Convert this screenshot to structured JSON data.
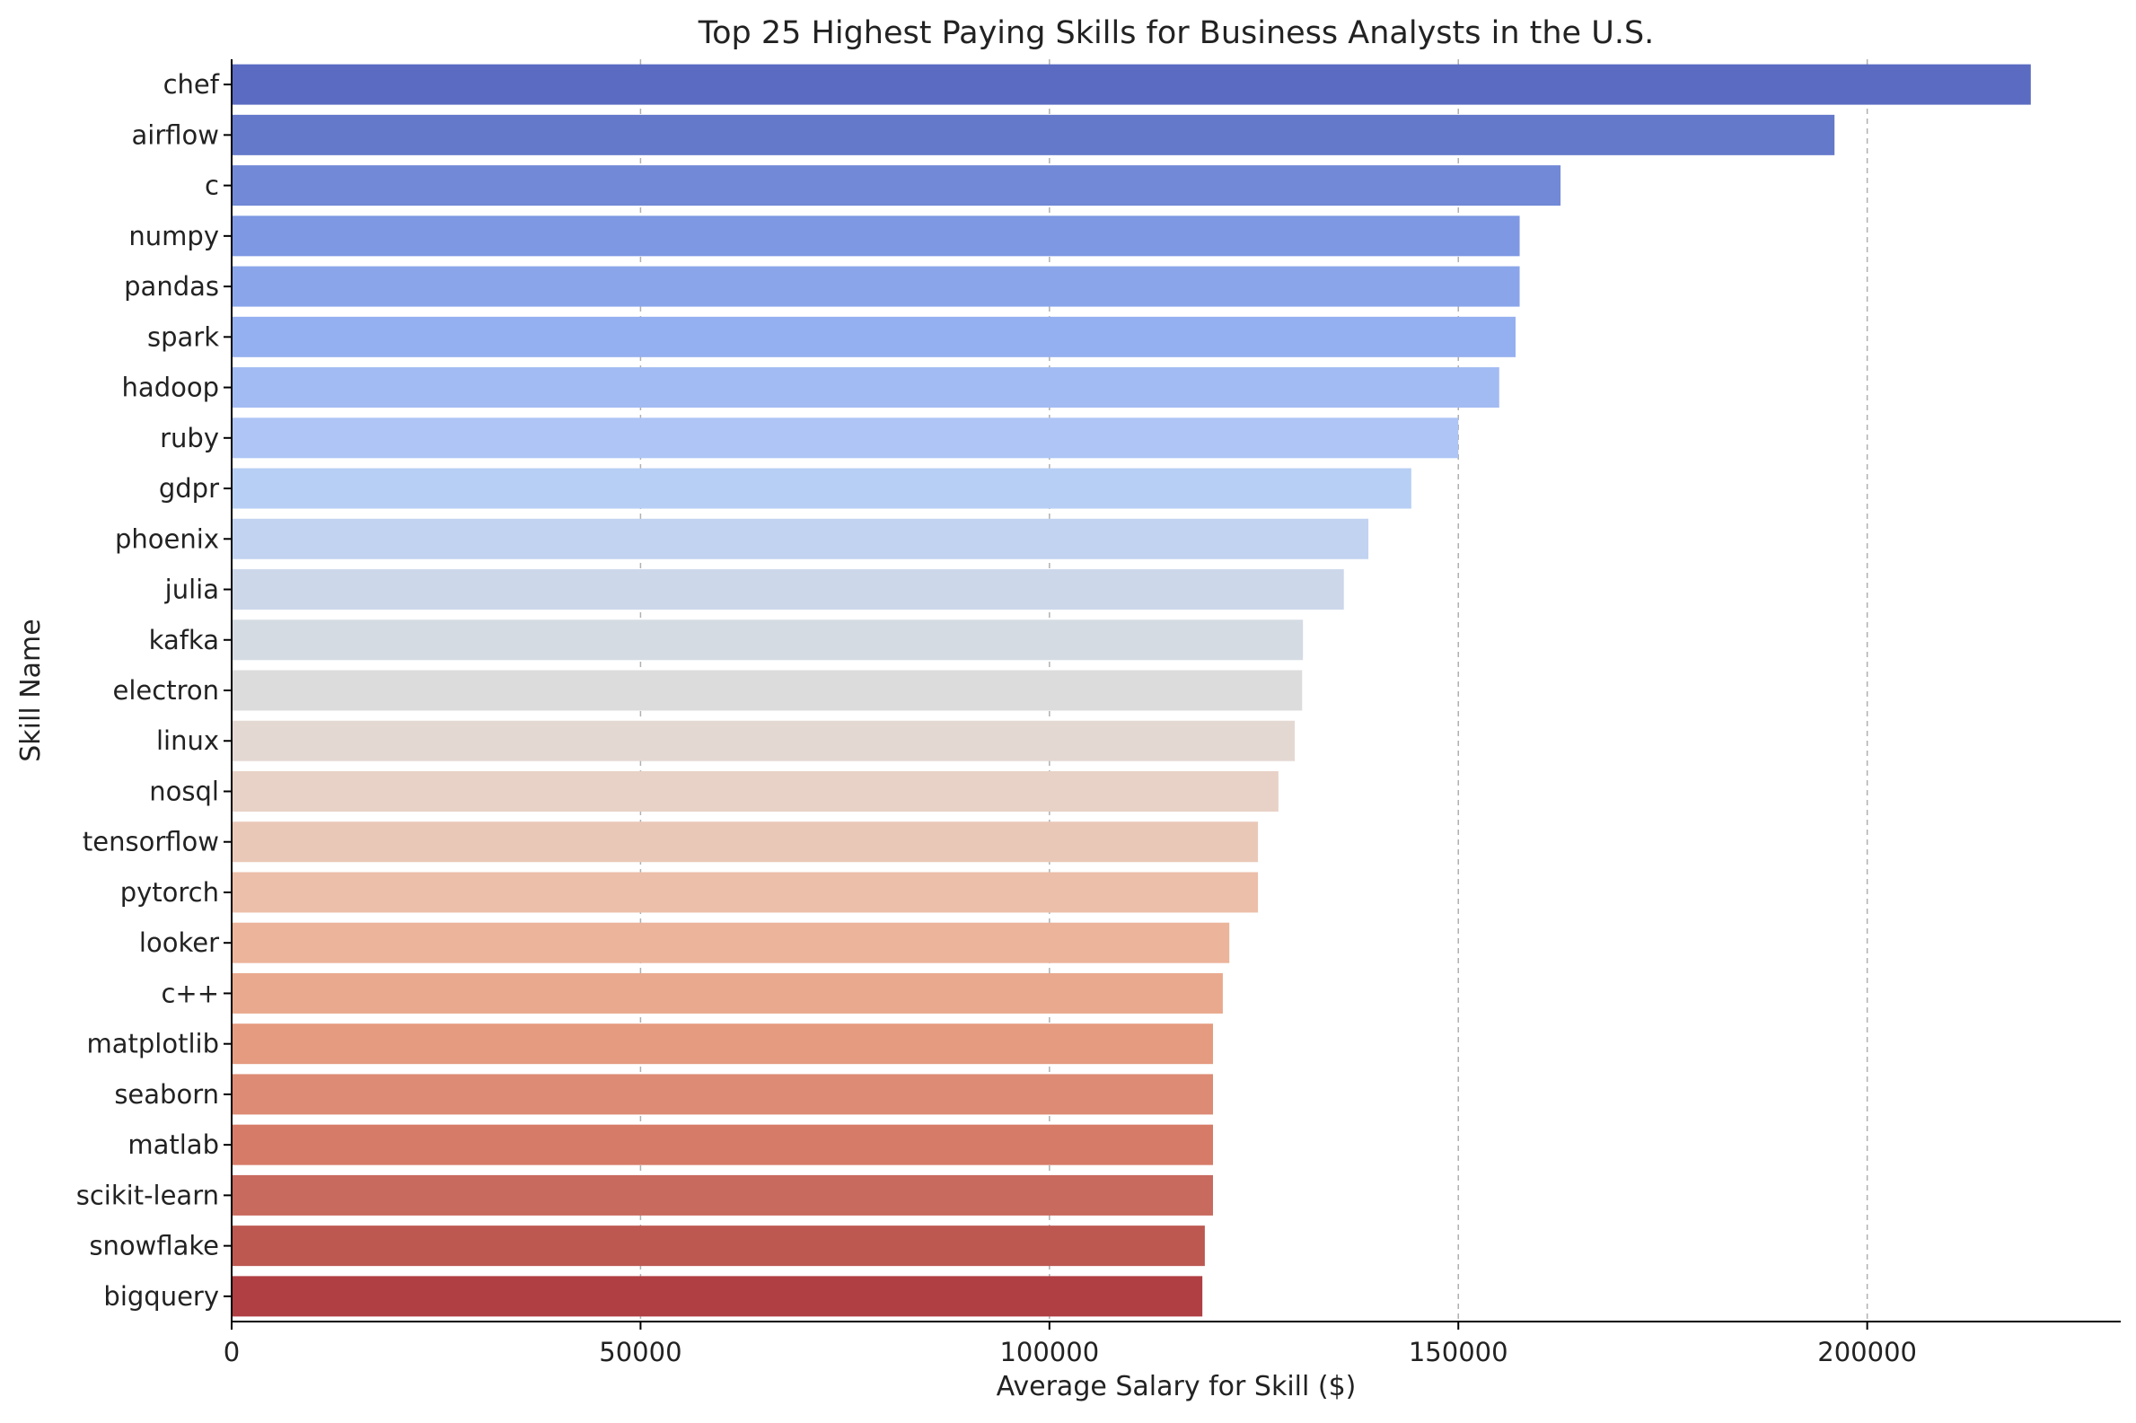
{
  "chart_data": {
    "type": "bar",
    "orientation": "horizontal",
    "title": "Top 25 Highest Paying Skills for Business Analysts in the U.S.",
    "xlabel": "Average Salary for Skill ($)",
    "ylabel": "Skill Name",
    "xlim": [
      0,
      231000
    ],
    "xticks": [
      0,
      50000,
      100000,
      150000,
      200000
    ],
    "grid": "x-axis dashed",
    "palette": "coolwarm",
    "categories": [
      "chef",
      "airflow",
      "c",
      "numpy",
      "pandas",
      "spark",
      "hadoop",
      "ruby",
      "gdpr",
      "phoenix",
      "julia",
      "kafka",
      "electron",
      "linux",
      "nosql",
      "tensorflow",
      "pytorch",
      "looker",
      "c++",
      "matplotlib",
      "seaborn",
      "matlab",
      "scikit-learn",
      "snowflake",
      "bigquery"
    ],
    "values": [
      220000,
      196000,
      162500,
      157500,
      157500,
      157000,
      155000,
      150000,
      144250,
      139000,
      136000,
      131000,
      130900,
      130000,
      128000,
      125500,
      125500,
      122000,
      121200,
      120000,
      120000,
      120000,
      120000,
      119000,
      118700
    ],
    "colors": [
      "#5a6bc1",
      "#6479ca",
      "#7189d6",
      "#7e98e3",
      "#8aa5ea",
      "#95b0f0",
      "#a2bbf3",
      "#aec5f5",
      "#b8cff5",
      "#c2d3f1",
      "#ccd7ea",
      "#d4dbe3",
      "#dcdcdc",
      "#e4d8d2",
      "#e8d1c6",
      "#eac8b8",
      "#ecbfaa",
      "#ebb49b",
      "#e9a98e",
      "#e59b80",
      "#dd8b74",
      "#d67b67",
      "#c86a5e",
      "#bc5850",
      "#b03f43"
    ]
  }
}
